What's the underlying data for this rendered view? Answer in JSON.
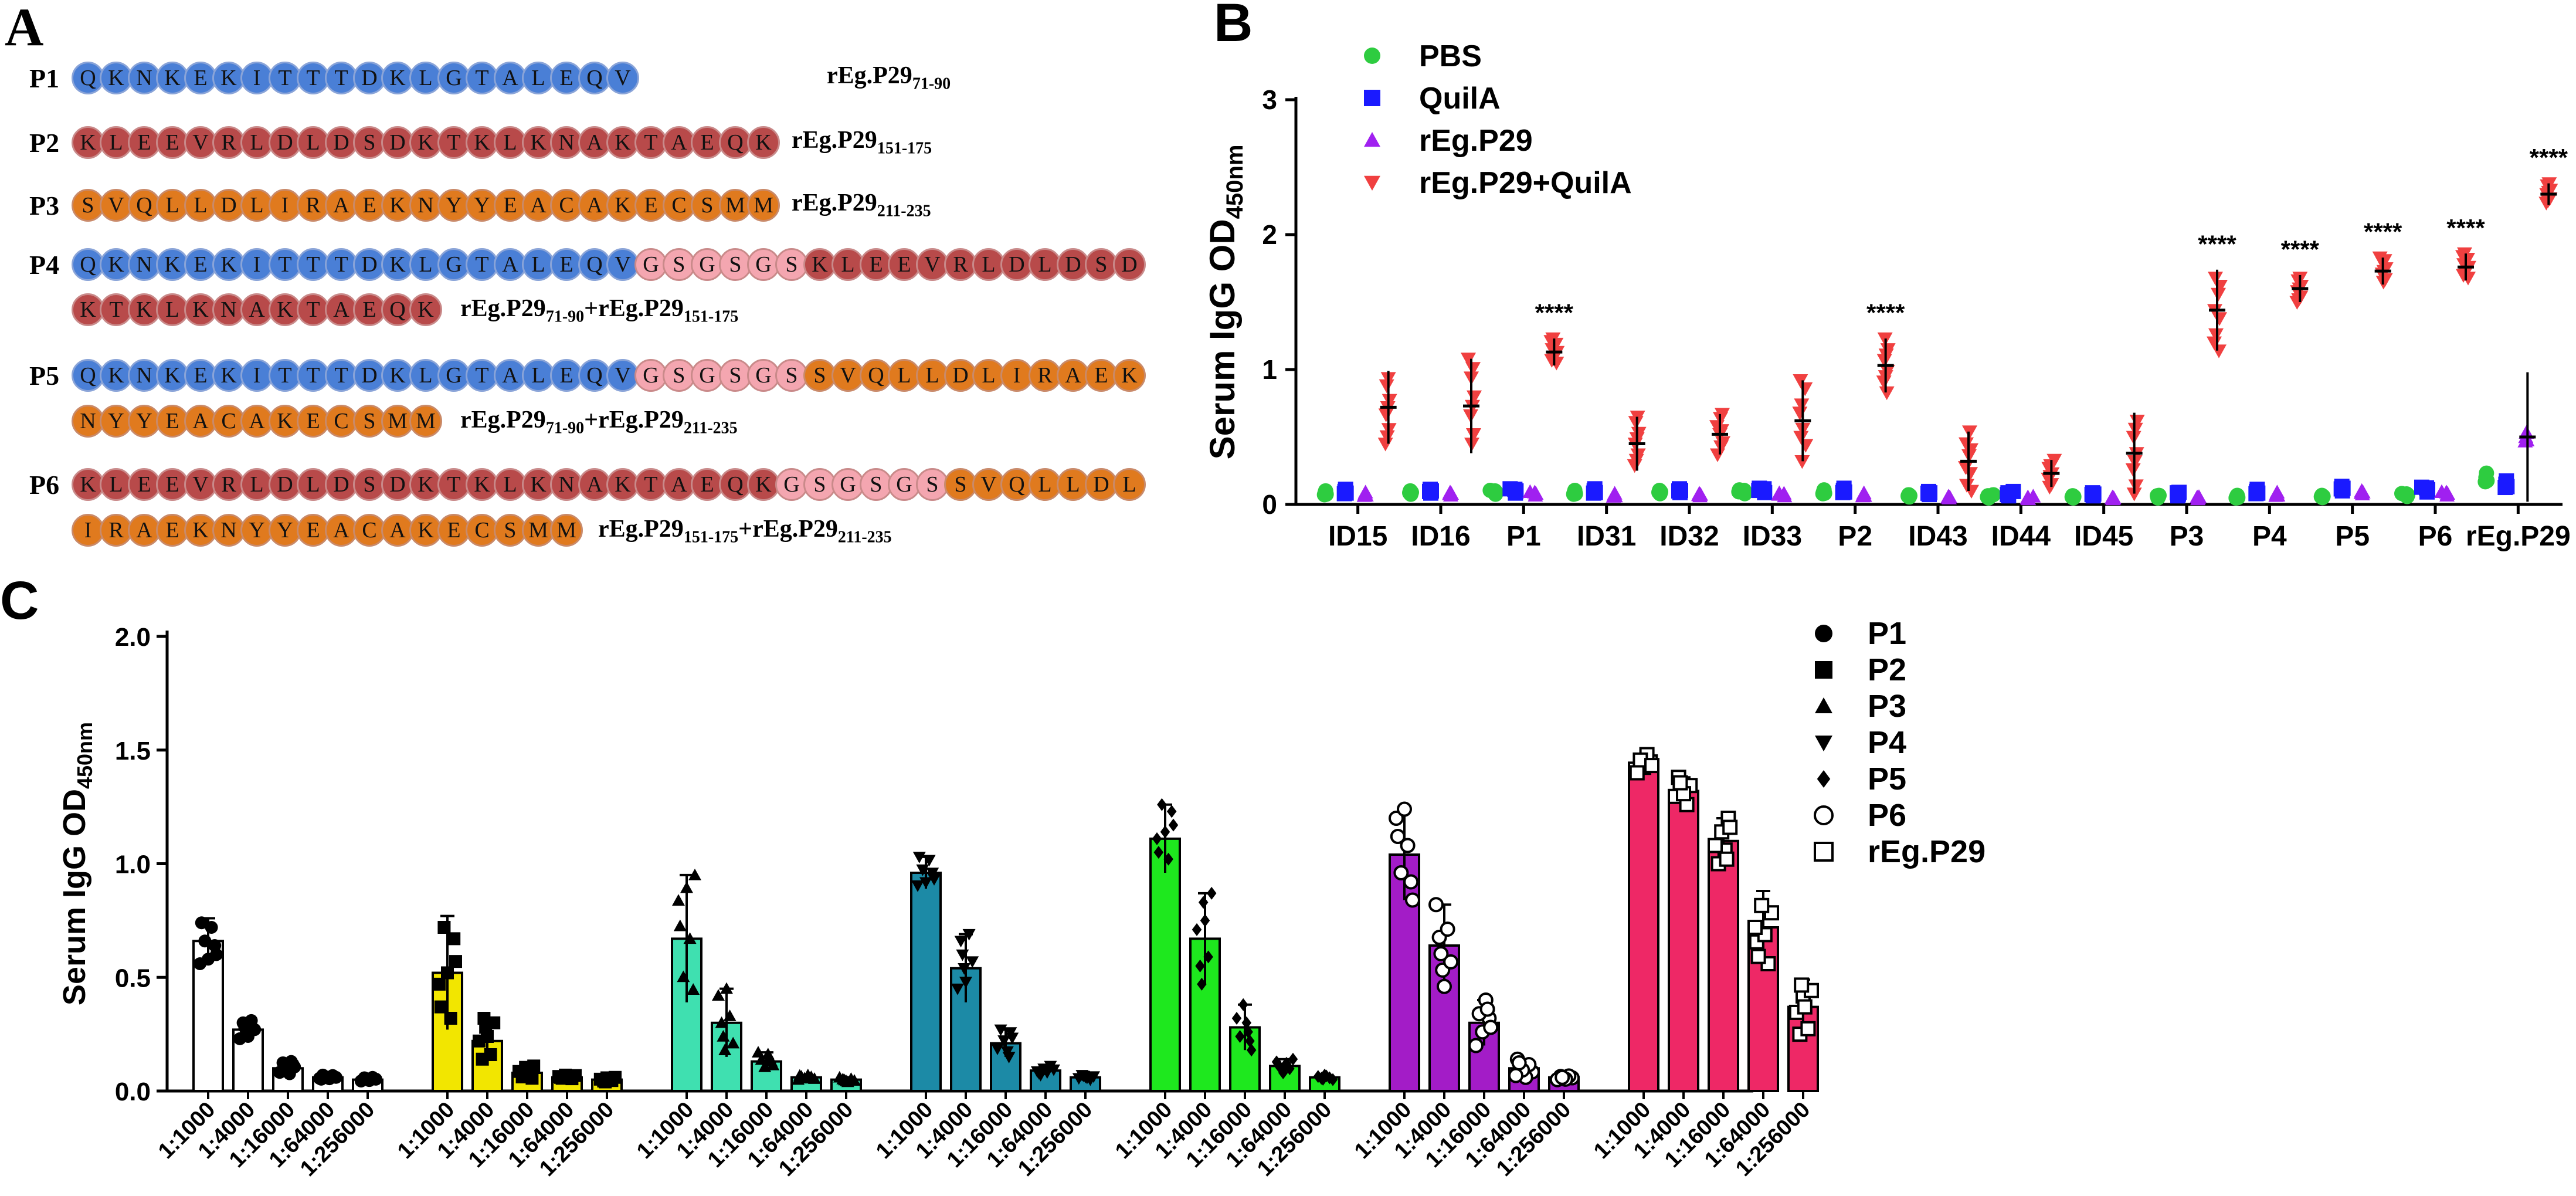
{
  "panelA": {
    "letter": "A",
    "colors": {
      "P1": "#4a7fd6",
      "P2": "#b84a4a",
      "P3": "#e07a1e",
      "linker": "#f4a6b0"
    },
    "rows": [
      {
        "label": "P1",
        "lines": [
          [
            {
              "seg": "P1",
              "seq": "QKNKEKITTTDKLGTALEQV"
            }
          ]
        ],
        "desc": {
          "main": "rEg.P29",
          "sub": "71-90",
          "rest": []
        }
      },
      {
        "label": "P2",
        "lines": [
          [
            {
              "seg": "P2",
              "seq": "KLEEVRLDLDSDKTKLKNAKTAEQK"
            }
          ]
        ],
        "desc": {
          "main": "rEg.P29",
          "sub": "151-175",
          "rest": []
        }
      },
      {
        "label": "P3",
        "lines": [
          [
            {
              "seg": "P3",
              "seq": "SVQLLDLIRAEKNYYEACAKECSMM"
            }
          ]
        ],
        "desc": {
          "main": "rEg.P29",
          "sub": "211-235",
          "rest": []
        }
      },
      {
        "label": "P4",
        "lines": [
          [
            {
              "seg": "P1",
              "seq": "QKNKEKITTTDKLGTALEQV"
            },
            {
              "seg": "linker",
              "seq": "GSGSGS"
            },
            {
              "seg": "P2",
              "seq": "KLEEVRLDLDSD"
            }
          ],
          [
            {
              "seg": "P2",
              "seq": "KTKLKNAKTAEQK"
            }
          ]
        ],
        "desc": {
          "main": "rEg.P29",
          "sub": "71-90",
          "rest": [
            {
              "main": "+rEg.P29",
              "sub": "151-175"
            }
          ]
        }
      },
      {
        "label": "P5",
        "lines": [
          [
            {
              "seg": "P1",
              "seq": "QKNKEKITTTDKLGTALEQV"
            },
            {
              "seg": "linker",
              "seq": "GSGSGS"
            },
            {
              "seg": "P3",
              "seq": "SVQLLDLIRAEK"
            }
          ],
          [
            {
              "seg": "P3",
              "seq": "NYYEACAKECSMM"
            }
          ]
        ],
        "desc": {
          "main": "rEg.P29",
          "sub": "71-90",
          "rest": [
            {
              "main": "+rEg.P29",
              "sub": "211-235"
            }
          ]
        }
      },
      {
        "label": "P6",
        "lines": [
          [
            {
              "seg": "P2",
              "seq": "KLEEVRLDLDSDKTKLKNAKTAEQK"
            },
            {
              "seg": "linker",
              "seq": "GSGSGS"
            },
            {
              "seg": "P3",
              "seq": "SVQLLDL"
            }
          ],
          [
            {
              "seg": "P3",
              "seq": "IRAEKNYYEACAKECSMM"
            }
          ]
        ],
        "desc": {
          "main": "rEg.P29",
          "sub": "151-175",
          "rest": [
            {
              "main": "+rEg.P29",
              "sub": "211-235"
            }
          ]
        }
      }
    ]
  },
  "chart_data": [
    {
      "panel": "B",
      "type": "scatter",
      "ylabel": "Serum IgG OD",
      "ylabel_sub": "450nm",
      "ylim": [
        0,
        3
      ],
      "yticks": [
        0,
        1,
        2,
        3
      ],
      "categories": [
        "ID15",
        "ID16",
        "P1",
        "ID31",
        "ID32",
        "ID33",
        "P2",
        "ID43",
        "ID44",
        "ID45",
        "P3",
        "P4",
        "P5",
        "P6",
        "rEg.P29"
      ],
      "series": [
        {
          "name": "PBS",
          "color": "#2ecc40",
          "marker": "circle",
          "values": [
            0.09,
            0.09,
            0.09,
            0.09,
            0.09,
            0.09,
            0.09,
            0.06,
            0.06,
            0.06,
            0.06,
            0.06,
            0.06,
            0.07,
            0.2
          ]
        },
        {
          "name": "QuilA",
          "color": "#1a1aff",
          "marker": "square",
          "values": [
            0.1,
            0.1,
            0.1,
            0.1,
            0.1,
            0.1,
            0.1,
            0.08,
            0.08,
            0.08,
            0.08,
            0.1,
            0.12,
            0.11,
            0.15
          ]
        },
        {
          "name": "rEg.P29",
          "color": "#a020f0",
          "marker": "triangle-up",
          "values": [
            0.08,
            0.08,
            0.08,
            0.07,
            0.07,
            0.07,
            0.07,
            0.05,
            0.05,
            0.05,
            0.05,
            0.08,
            0.09,
            0.08,
            0.5
          ]
        },
        {
          "name": "rEg.P29+QuilA",
          "color": "#f04040",
          "marker": "triangle-down",
          "values": [
            0.72,
            0.73,
            1.13,
            0.45,
            0.52,
            0.62,
            1.03,
            0.32,
            0.23,
            0.38,
            1.44,
            1.6,
            1.73,
            1.76,
            2.3
          ]
        }
      ],
      "errors": [
        0.27,
        0.35,
        0.1,
        0.2,
        0.15,
        0.3,
        0.2,
        0.22,
        0.1,
        0.3,
        0.3,
        0.1,
        0.1,
        0.1,
        0.08
      ],
      "significance": [
        {
          "category": "P1",
          "label": "****"
        },
        {
          "category": "P2",
          "label": "****"
        },
        {
          "category": "P3",
          "label": "****"
        },
        {
          "category": "P4",
          "label": "****"
        },
        {
          "category": "P5",
          "label": "****"
        },
        {
          "category": "P6",
          "label": "****"
        },
        {
          "category": "rEg.P29",
          "label": "****"
        }
      ]
    },
    {
      "panel": "C",
      "type": "bar",
      "ylabel": "Serum IgG OD",
      "ylabel_sub": "450nm",
      "ylim": [
        0,
        2.0
      ],
      "yticks": [
        "0.0",
        "0.5",
        "1.0",
        "1.5",
        "2.0"
      ],
      "dilutions": [
        "1:1000",
        "1:4000",
        "1:16000",
        "1:64000",
        "1:256000"
      ],
      "series": [
        {
          "name": "P1",
          "marker": "circle",
          "color": "#ffffff",
          "values": [
            0.66,
            0.27,
            0.1,
            0.06,
            0.05
          ],
          "errors": [
            0.1,
            0.05,
            0.03,
            0.01,
            0.01
          ]
        },
        {
          "name": "P2",
          "marker": "square",
          "color": "#f2e600",
          "values": [
            0.52,
            0.22,
            0.08,
            0.06,
            0.05
          ],
          "errors": [
            0.25,
            0.1,
            0.03,
            0.01,
            0.01
          ]
        },
        {
          "name": "P3",
          "marker": "triangle-up",
          "color": "#3fe0b0",
          "values": [
            0.67,
            0.3,
            0.13,
            0.06,
            0.05
          ],
          "errors": [
            0.28,
            0.15,
            0.04,
            0.01,
            0.01
          ]
        },
        {
          "name": "P4",
          "marker": "triangle-down",
          "color": "#1c8aa6",
          "values": [
            0.96,
            0.54,
            0.21,
            0.09,
            0.06
          ],
          "errors": [
            0.07,
            0.15,
            0.06,
            0.02,
            0.01
          ]
        },
        {
          "name": "P5",
          "marker": "diamond",
          "color": "#1ee81e",
          "values": [
            1.11,
            0.67,
            0.28,
            0.11,
            0.06
          ],
          "errors": [
            0.15,
            0.2,
            0.1,
            0.03,
            0.01
          ]
        },
        {
          "name": "P6",
          "marker": "open-circle",
          "color": "#a31cc7",
          "values": [
            1.04,
            0.64,
            0.3,
            0.1,
            0.06
          ],
          "errors": [
            0.2,
            0.18,
            0.1,
            0.04,
            0.01
          ]
        },
        {
          "name": "rEg.P29",
          "marker": "open-square",
          "color": "#ee2866",
          "values": [
            1.44,
            1.32,
            1.1,
            0.72,
            0.37
          ],
          "errors": [
            0.04,
            0.06,
            0.1,
            0.16,
            0.12
          ]
        }
      ],
      "legend_position": "right"
    }
  ]
}
